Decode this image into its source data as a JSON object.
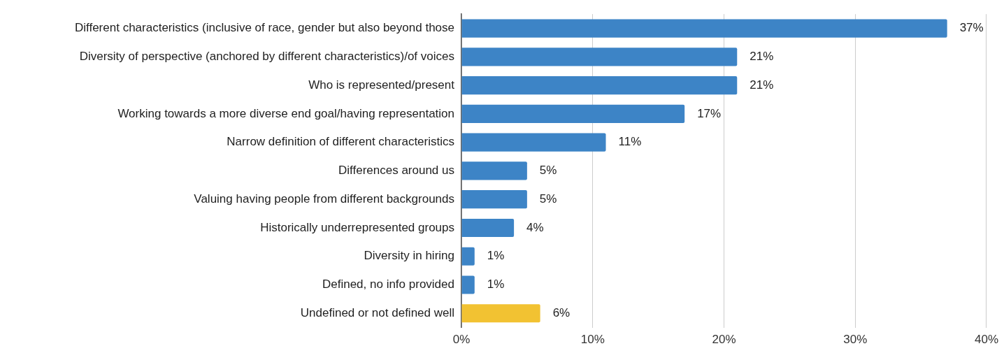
{
  "chart_data": {
    "type": "bar",
    "orientation": "horizontal",
    "categories": [
      "Different characteristics (inclusive of race, gender but also beyond those",
      "Diversity of perspective (anchored by different characteristics)/of voices",
      "Who is represented/present",
      "Working towards a more diverse end goal/having representation",
      "Narrow definition of different characteristics",
      "Differences around us",
      "Valuing having people from different backgrounds",
      "Historically underrepresented groups",
      "Diversity in hiring",
      "Defined, no info provided",
      "Undefined or not defined well"
    ],
    "values": [
      37,
      21,
      21,
      17,
      11,
      5,
      5,
      4,
      1,
      1,
      6
    ],
    "value_labels": [
      "37%",
      "21%",
      "21%",
      "17%",
      "11%",
      "5%",
      "5%",
      "4%",
      "1%",
      "1%",
      "6%"
    ],
    "colors": [
      "#3d84c6",
      "#3d84c6",
      "#3d84c6",
      "#3d84c6",
      "#3d84c6",
      "#3d84c6",
      "#3d84c6",
      "#3d84c6",
      "#3d84c6",
      "#3d84c6",
      "#f2c232"
    ],
    "xlim": [
      0,
      40
    ],
    "xticks": [
      {
        "value": 0,
        "label": "0%"
      },
      {
        "value": 10,
        "label": "10%"
      },
      {
        "value": 20,
        "label": "20%"
      },
      {
        "value": 30,
        "label": "30%"
      },
      {
        "value": 40,
        "label": "40%"
      }
    ],
    "grid": "x",
    "legend": false
  }
}
